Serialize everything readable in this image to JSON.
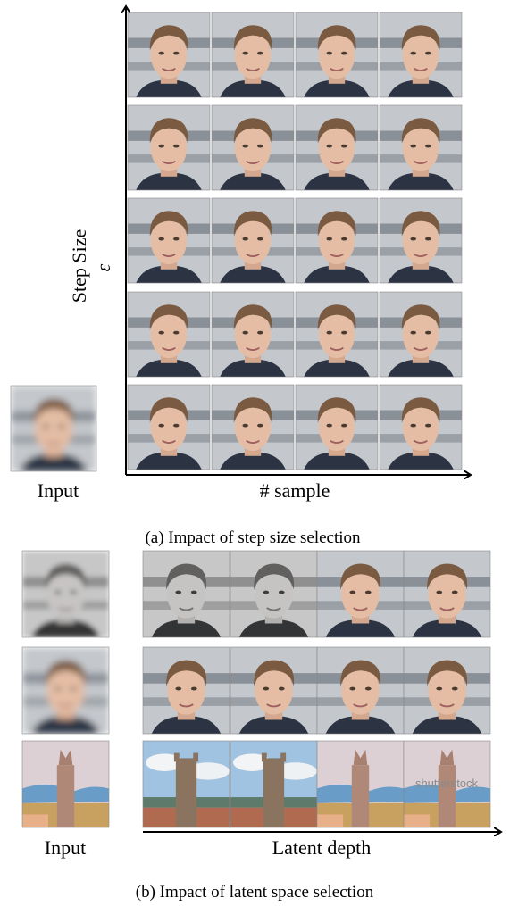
{
  "figure": {
    "part_a": {
      "y_axis_label": "Step Size",
      "y_axis_symbol": "ε",
      "x_axis_label": "# sample",
      "input_label": "Input",
      "caption": "(a) Impact of step size selection"
    },
    "part_b": {
      "input_label": "Input",
      "x_axis_label": "Latent depth",
      "watermark": "shutterstock",
      "caption": "(b) Impact of latent space selection"
    }
  }
}
